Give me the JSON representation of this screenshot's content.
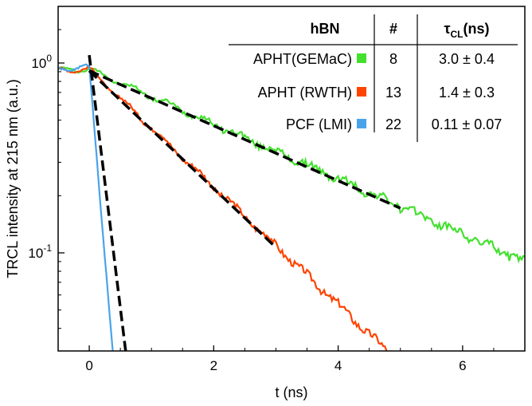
{
  "chart_data": {
    "type": "line",
    "title": "",
    "xlabel": "t (ns)",
    "ylabel": "TRCL intensity at 215 nm (a.u.)",
    "xlim": [
      -0.5,
      7
    ],
    "ylim": [
      0.03,
      1.8
    ],
    "yscale": "log",
    "xticks": [
      0,
      2,
      4,
      6
    ],
    "xtick_labels": [
      "0",
      "2",
      "4",
      "6"
    ],
    "ytick_labels": [
      {
        "value": 1,
        "base": "10",
        "exp": "0"
      },
      {
        "value": 0.1,
        "base": "10",
        "exp": "-1"
      }
    ],
    "legend": {
      "header": {
        "sample": "hBN",
        "count": "#",
        "tau_symbol": "τ",
        "tau_sub": "CL",
        "tau_unit": "(ns)"
      },
      "rows": [
        {
          "name": "APHT(GEMaC)",
          "count": "8",
          "tau": "3.0 ± 0.4",
          "color": "#44e02e"
        },
        {
          "name": "APHT (RWTH)",
          "count": "13",
          "tau": "1.4 ± 0.3",
          "color": "#ff4400"
        },
        {
          "name": "PCF (LMI)",
          "count": "22",
          "tau": "0.11 ± 0.07",
          "color": "#4aa3ea"
        }
      ]
    },
    "series": [
      {
        "name": "APHT(GEMaC)",
        "color": "#44e02e",
        "amplitude": 0.93,
        "tau_ns": 3.0,
        "t_start": -0.5,
        "t_end": 7.0
      },
      {
        "name": "APHT (RWTH)",
        "color": "#ff4400",
        "amplitude": 0.93,
        "tau_ns": 1.4,
        "t_start": -0.5,
        "t_end": 7.0
      },
      {
        "name": "PCF (LMI)",
        "color": "#4aa3ea",
        "amplitude": 0.95,
        "tau_ns": 0.11,
        "t_start": -0.5,
        "t_end": 1.2
      }
    ],
    "fits": [
      {
        "name": "fit-gemac",
        "t0": 0.0,
        "t1": 5.0,
        "y0": 0.91,
        "tau_ns": 3.0
      },
      {
        "name": "fit-rwth",
        "t0": 0.0,
        "t1": 3.0,
        "y0": 0.91,
        "tau_ns": 1.4
      },
      {
        "name": "fit-pcf",
        "t0": 0.0,
        "t1": 0.6,
        "y0": 1.1,
        "tau_ns": 0.163
      }
    ]
  }
}
